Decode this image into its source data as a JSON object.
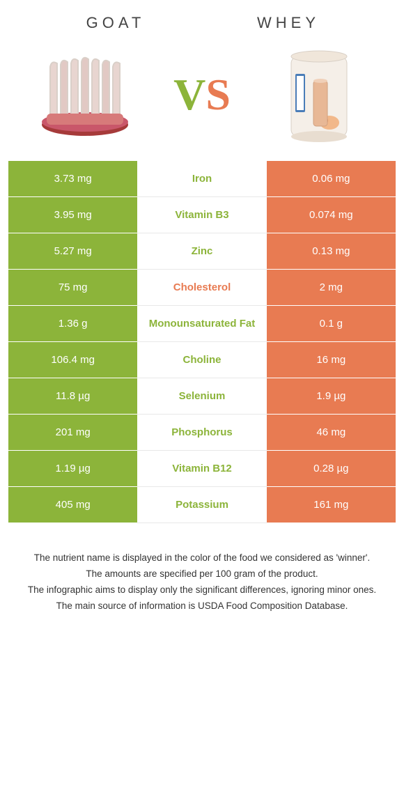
{
  "left": {
    "title": "GOAT",
    "color": "#8cb43a"
  },
  "right": {
    "title": "WHEY",
    "color": "#e87b52"
  },
  "rows": [
    {
      "left": "3.73 mg",
      "label": "Iron",
      "right": "0.06 mg",
      "winner": "left"
    },
    {
      "left": "3.95 mg",
      "label": "Vitamin B3",
      "right": "0.074 mg",
      "winner": "left"
    },
    {
      "left": "5.27 mg",
      "label": "Zinc",
      "right": "0.13 mg",
      "winner": "left"
    },
    {
      "left": "75 mg",
      "label": "Cholesterol",
      "right": "2 mg",
      "winner": "right"
    },
    {
      "left": "1.36 g",
      "label": "Monounsaturated Fat",
      "right": "0.1 g",
      "winner": "left"
    },
    {
      "left": "106.4 mg",
      "label": "Choline",
      "right": "16 mg",
      "winner": "left"
    },
    {
      "left": "11.8 µg",
      "label": "Selenium",
      "right": "1.9 µg",
      "winner": "left"
    },
    {
      "left": "201 mg",
      "label": "Phosphorus",
      "right": "46 mg",
      "winner": "left"
    },
    {
      "left": "1.19 µg",
      "label": "Vitamin B12",
      "right": "0.28 µg",
      "winner": "left"
    },
    {
      "left": "405 mg",
      "label": "Potassium",
      "right": "161 mg",
      "winner": "left"
    }
  ],
  "notes": [
    "The nutrient name is displayed in the color of the food we considered as 'winner'.",
    "The amounts are specified per 100 gram of the product.",
    "The infographic aims to display only the significant differences, ignoring minor ones.",
    "The main source of information is USDA Food Composition Database."
  ]
}
